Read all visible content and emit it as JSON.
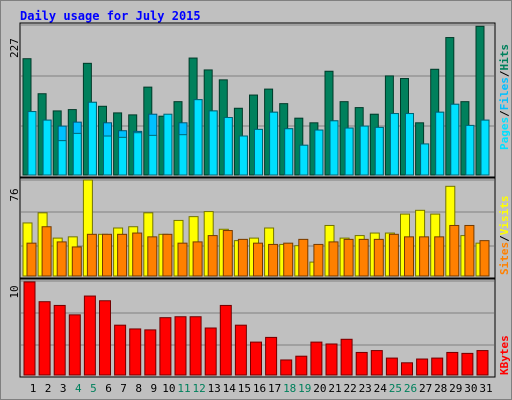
{
  "title": "Daily usage for July 2015",
  "colors": {
    "background": "#c0c0c0",
    "title": "#0000ff",
    "hits": "#00805c",
    "files": "#00c0ff",
    "pages": "#00e0ff",
    "visits": "#ffff00",
    "sites": "#ff8000",
    "kbytes": "#ff0000",
    "weekend_label": "#00805c",
    "weekday_label": "#000000"
  },
  "legend": {
    "top": [
      "Pages",
      "/",
      "Files",
      "/",
      "Hits"
    ],
    "middle": [
      "Sites",
      "/",
      "Visits"
    ],
    "bottom": [
      "KBytes"
    ]
  },
  "chart_data": [
    {
      "type": "bar",
      "panel": "hits-files-pages",
      "ymax_label": "227",
      "ylim": [
        0,
        227
      ],
      "categories": [
        "1",
        "2",
        "3",
        "4",
        "5",
        "6",
        "7",
        "8",
        "9",
        "10",
        "11",
        "12",
        "13",
        "14",
        "15",
        "16",
        "17",
        "18",
        "19",
        "20",
        "21",
        "22",
        "23",
        "24",
        "25",
        "26",
        "27",
        "28",
        "29",
        "30",
        "31"
      ],
      "weekend_days": [
        "4",
        "5",
        "11",
        "12",
        "18",
        "19",
        "25",
        "26"
      ],
      "series": [
        {
          "name": "Hits",
          "values": [
            176,
            123,
            97,
            99,
            169,
            104,
            94,
            91,
            133,
            89,
            111,
            177,
            159,
            144,
            101,
            121,
            130,
            108,
            86,
            79,
            157,
            111,
            102,
            92,
            150,
            146,
            79,
            160,
            208,
            111,
            225
          ]
        },
        {
          "name": "Files",
          "values": [
            96,
            83,
            74,
            80,
            110,
            79,
            67,
            66,
            92,
            74,
            79,
            114,
            97,
            87,
            59,
            69,
            95,
            70,
            45,
            68,
            82,
            71,
            74,
            72,
            93,
            93,
            47,
            95,
            107,
            75,
            83
          ]
        },
        {
          "name": "Pages",
          "values": [
            96,
            83,
            52,
            63,
            110,
            59,
            57,
            64,
            60,
            92,
            61,
            114,
            97,
            87,
            59,
            69,
            95,
            70,
            45,
            68,
            82,
            71,
            74,
            72,
            93,
            93,
            47,
            95,
            107,
            75,
            83
          ]
        }
      ]
    },
    {
      "type": "bar",
      "panel": "visits-sites",
      "ymax_label": "76",
      "ylim": [
        0,
        76
      ],
      "categories": [
        "1",
        "2",
        "3",
        "4",
        "5",
        "6",
        "7",
        "8",
        "9",
        "10",
        "11",
        "12",
        "13",
        "14",
        "15",
        "16",
        "17",
        "18",
        "19",
        "20",
        "21",
        "22",
        "23",
        "24",
        "25",
        "26",
        "27",
        "28",
        "29",
        "30",
        "31"
      ],
      "series": [
        {
          "name": "Visits",
          "values": [
            42,
            50,
            30,
            31,
            76,
            33,
            38,
            39,
            50,
            33,
            44,
            47,
            51,
            37,
            28,
            30,
            38,
            25,
            24,
            11,
            40,
            30,
            32,
            34,
            34,
            49,
            52,
            49,
            71,
            32,
            26
          ]
        },
        {
          "name": "Sites",
          "values": [
            26,
            39,
            27,
            23,
            33,
            33,
            33,
            34,
            31,
            33,
            26,
            27,
            32,
            36,
            29,
            26,
            25,
            26,
            29,
            25,
            27,
            29,
            29,
            29,
            33,
            31,
            31,
            31,
            40,
            40,
            28
          ]
        }
      ]
    },
    {
      "type": "bar",
      "panel": "kbytes",
      "ymax_label": "10",
      "ylim": [
        0,
        10
      ],
      "categories": [
        "1",
        "2",
        "3",
        "4",
        "5",
        "6",
        "7",
        "8",
        "9",
        "10",
        "11",
        "12",
        "13",
        "14",
        "15",
        "16",
        "17",
        "18",
        "19",
        "20",
        "21",
        "22",
        "23",
        "24",
        "25",
        "26",
        "27",
        "28",
        "29",
        "30",
        "31"
      ],
      "series": [
        {
          "name": "KBytes",
          "values": [
            9.9,
            7.8,
            7.4,
            6.4,
            8.4,
            7.9,
            5.3,
            4.9,
            4.8,
            6.1,
            6.2,
            6.2,
            5.0,
            7.4,
            5.3,
            3.5,
            4.0,
            1.6,
            2.0,
            3.5,
            3.3,
            3.8,
            2.4,
            2.6,
            1.8,
            1.3,
            1.7,
            1.8,
            2.4,
            2.3,
            2.6
          ]
        }
      ]
    }
  ]
}
